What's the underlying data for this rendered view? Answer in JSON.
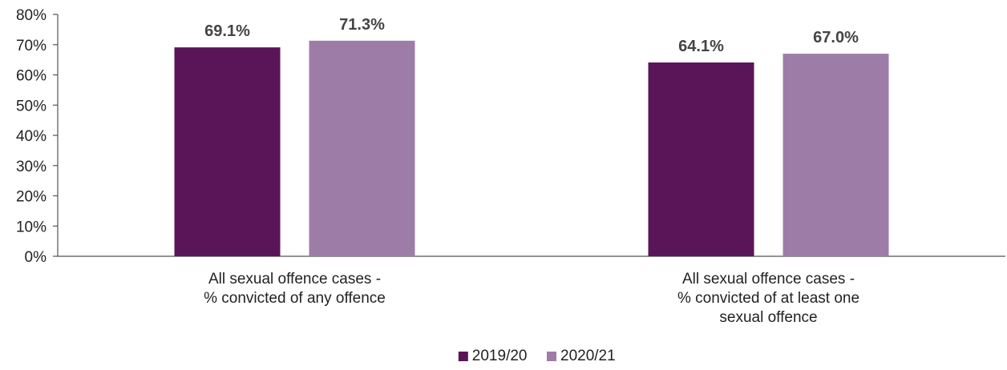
{
  "chart_data": {
    "type": "bar",
    "categories": [
      [
        "All sexual offence cases -",
        "% convicted of any offence"
      ],
      [
        "All sexual offence cases -",
        "% convicted of at least one",
        "sexual offence"
      ]
    ],
    "series": [
      {
        "name": "2019/20",
        "values": [
          69.1,
          64.1
        ],
        "labels": [
          "69.1%",
          "64.1%"
        ],
        "color": "#5a1458"
      },
      {
        "name": "2020/21",
        "values": [
          71.3,
          67.0
        ],
        "labels": [
          "71.3%",
          "67.0%"
        ],
        "color": "#9e7ca8"
      }
    ],
    "ylim": [
      0,
      80
    ],
    "yticks": [
      "0%",
      "10%",
      "20%",
      "30%",
      "40%",
      "50%",
      "60%",
      "70%",
      "80%"
    ],
    "grid": false,
    "legend_position": "bottom",
    "title": "",
    "xlabel": "",
    "ylabel": ""
  }
}
